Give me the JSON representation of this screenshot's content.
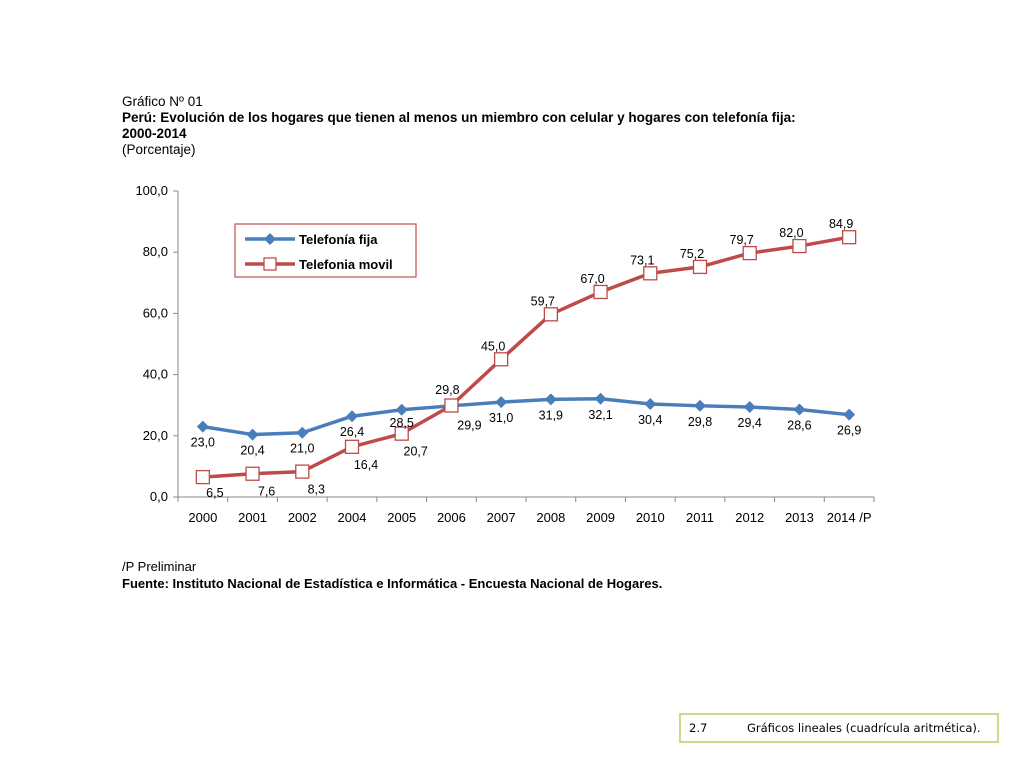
{
  "heading": {
    "label": "Gráfico Nº 01",
    "title": "Perú:  Evolución de los hogares  que tienen al menos un miembro con celular y hogares con telefonía fija:",
    "period": "2000-2014",
    "unit": "(Porcentaje)"
  },
  "notes": {
    "preliminary": "/P Preliminar",
    "source": "Fuente: Instituto Nacional de Estadística e Informática - Encuesta Nacional de Hogares."
  },
  "footer": {
    "number": "2.7",
    "caption": "Gráficos lineales (cuadrícula aritmética)."
  },
  "chart_data": {
    "type": "line",
    "categories": [
      "2000",
      "2001",
      "2002",
      "2004",
      "2005",
      "2006",
      "2007",
      "2008",
      "2009",
      "2010",
      "2011",
      "2012",
      "2013",
      "2014 /P"
    ],
    "ylim": [
      0,
      100
    ],
    "yticks": [
      "0,0",
      "20,0",
      "40,0",
      "60,0",
      "80,0",
      "100,0"
    ],
    "grid": false,
    "legend_position": "top-left",
    "series": [
      {
        "name": "Telefonía fija",
        "color": "#4a7ebb",
        "marker": "diamond",
        "values": [
          23.0,
          20.4,
          21.0,
          26.4,
          28.5,
          29.8,
          31.0,
          31.9,
          32.1,
          30.4,
          29.8,
          29.4,
          28.6,
          26.9
        ],
        "labels": [
          "23,0",
          "20,4",
          "21,0",
          "26,4",
          "28,5",
          "29,8",
          "31,0",
          "31,9",
          "32,1",
          "30,4",
          "29,8",
          "29,4",
          "28,6",
          "26,9"
        ]
      },
      {
        "name": "Telefonia movil",
        "color": "#be4b48",
        "marker": "square",
        "values": [
          6.5,
          7.6,
          8.3,
          16.4,
          20.7,
          29.9,
          45.0,
          59.7,
          67.0,
          73.1,
          75.2,
          79.7,
          82.0,
          84.9
        ],
        "labels": [
          "6,5",
          "7,6",
          "8,3",
          "16,4",
          "20,7",
          "29,9",
          "45,0",
          "59,7",
          "67,0",
          "73,1",
          "75,2",
          "79,7",
          "82,0",
          "84,9"
        ]
      }
    ]
  }
}
